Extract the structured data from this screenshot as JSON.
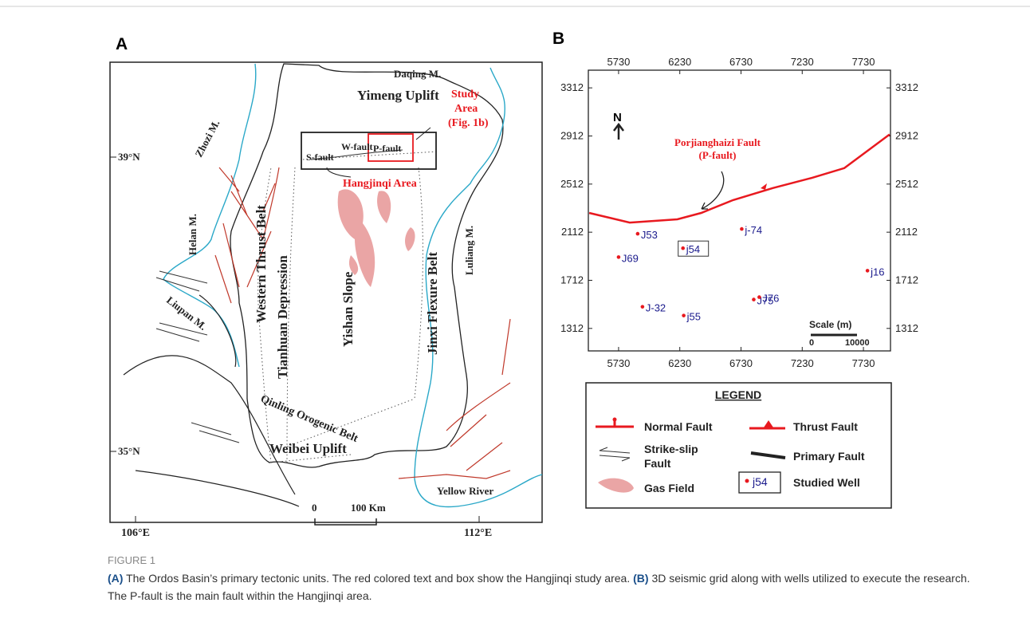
{
  "figure_a": {
    "panel_label": "A",
    "daqing": "Daqing M.",
    "yimeng": "Yimeng Uplift",
    "study_1": "Study",
    "study_2": "Area",
    "study_3": "(Fig. 1b)",
    "w_fault": "W-fault",
    "p_fault": "P-fault",
    "s_fault": "S-fault",
    "hangjinqi": "Hangjinqi Area",
    "lat_39": "39°N",
    "lat_35": "35°N",
    "zhozi": "Zhozi M.",
    "helan": "Helan M.",
    "western": "Western Thrust Belt",
    "tianhuan": "Tianhuan Depression",
    "yishan": "Yishan Slope",
    "jinxi": "Jinxi Flexure Belt",
    "luliang": "Luliang M.",
    "liupan": "Liupan M.",
    "weibei": "Weibei Uplift",
    "qinling": "Qinling Orogenic Belt",
    "scale_0": "0",
    "scale_100": "100 Km",
    "yellow_river": "Yellow River",
    "lon_106": "106°E",
    "lon_112": "112°E"
  },
  "chart_data": {
    "type": "scatter",
    "panel_label": "B",
    "xlim": [
      5483,
      7951
    ],
    "ylim": [
      1125,
      3459
    ],
    "xticks": [
      5730,
      6230,
      6730,
      7230,
      7730
    ],
    "yticks": [
      1312,
      1712,
      2112,
      2512,
      2912,
      3312
    ],
    "north": "N",
    "scale_title": "Scale (m)",
    "scale_0": "0",
    "scale_end": "10000",
    "fault_label_1": "Porjianghaizi Fault",
    "fault_label_2": "(P-fault)",
    "series": [
      {
        "color": "#e8191f",
        "x": [
          5490,
          5821,
          6210,
          6405,
          6665,
          6990,
          7314,
          7574,
          7944
        ],
        "y": [
          2272,
          2192,
          2219,
          2272,
          2379,
          2479,
          2565,
          2645,
          2925
        ]
      }
    ],
    "wells": {
      "color": "#e8191f",
      "label_color": "#1a1a8c",
      "boxed_index": 1,
      "labels": [
        "J53",
        "j54",
        "j-74",
        "J69",
        "j16",
        "J75",
        "J76",
        "J-32",
        "j55"
      ],
      "x": [
        5886,
        6256,
        6736,
        5730,
        7763,
        6834,
        6879,
        5925,
        6262
      ],
      "y": [
        2099,
        1979,
        2139,
        1905,
        1792,
        1552,
        1572,
        1492,
        1419
      ]
    }
  },
  "legend": {
    "title": "LEGEND",
    "normal": "Normal Fault",
    "thrust": "Thrust Fault",
    "strike_1": "Strike-slip",
    "strike_2": "Fault",
    "primary": "Primary Fault",
    "gas": "Gas Field",
    "well": "Studied Well",
    "well_sample": "j54"
  },
  "caption": {
    "label": "FIGURE 1",
    "a_label": "(A)",
    "a_text": " The Ordos Basin’s primary tectonic units. The red colored text and box show the Hangjinqi study area. ",
    "b_label": "(B)",
    "b_text": " 3D seismic grid along with wells utilized to execute the research. The P-fault is the main fault within the Hangjinqi area."
  }
}
